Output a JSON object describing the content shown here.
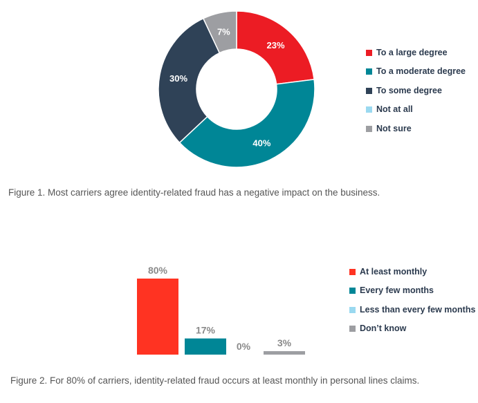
{
  "chart_data": [
    {
      "type": "pie",
      "donut": true,
      "categories": [
        "To a large degree",
        "To a moderate degree",
        "To some degree",
        "Not at all",
        "Not sure"
      ],
      "values": [
        23,
        40,
        30,
        0,
        7
      ],
      "labels": [
        "23%",
        "40%",
        "30%",
        "",
        "7%"
      ],
      "colors": [
        "#ec1c24",
        "#008696",
        "#2f4257",
        "#9ad9f0",
        "#9d9ea2"
      ],
      "legend": "right",
      "caption": "Figure 1. Most carriers agree identity-related fraud has a negative impact on the business."
    },
    {
      "type": "bar",
      "categories": [
        "At least monthly",
        "Every few months",
        "Less than every few months",
        "Don’t know"
      ],
      "values": [
        80,
        17,
        0,
        3
      ],
      "labels": [
        "80%",
        "17%",
        "0%",
        "3%"
      ],
      "colors": [
        "#ff3322",
        "#008696",
        "#9ad9f0",
        "#9d9ea2"
      ],
      "legend": "right",
      "grid": false,
      "caption": "Figure 2. For 80% of carriers, identity-related fraud occurs at least monthly in personal lines claims."
    }
  ]
}
